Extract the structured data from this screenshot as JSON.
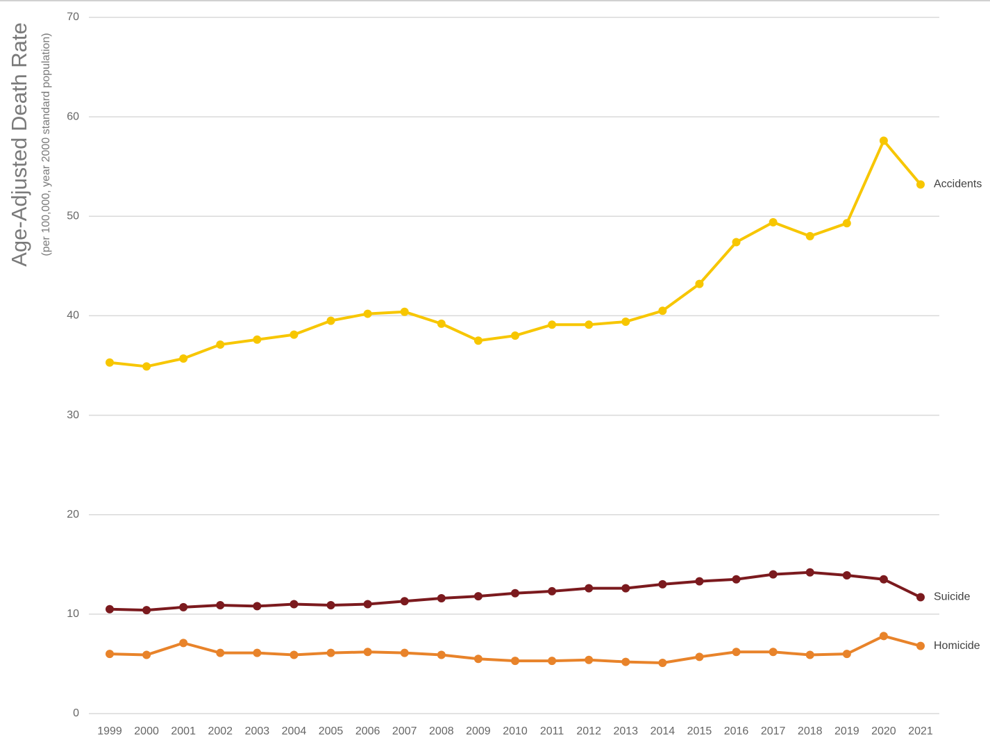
{
  "chart_data": {
    "type": "line",
    "ylabel": "Age-Adjusted Death Rate",
    "ylabel_sub": "(per 100,000, year 2000 standard population)",
    "categories": [
      "1999",
      "2000",
      "2001",
      "2002",
      "2003",
      "2004",
      "2005",
      "2006",
      "2007",
      "2008",
      "2009",
      "2010",
      "2011",
      "2012",
      "2013",
      "2014",
      "2015",
      "2016",
      "2017",
      "2018",
      "2019",
      "2020",
      "2021"
    ],
    "series": [
      {
        "name": "Accidents",
        "color": "#f7c600",
        "values": [
          35.3,
          34.9,
          35.7,
          37.1,
          37.6,
          38.1,
          39.5,
          40.2,
          40.4,
          39.2,
          37.5,
          38.0,
          39.1,
          39.1,
          39.4,
          40.5,
          43.2,
          47.4,
          49.4,
          48.0,
          49.3,
          57.6,
          53.2
        ]
      },
      {
        "name": "Suicide",
        "color": "#7b1a1e",
        "values": [
          10.5,
          10.4,
          10.7,
          10.9,
          10.8,
          11.0,
          10.9,
          11.0,
          11.3,
          11.6,
          11.8,
          12.1,
          12.3,
          12.6,
          12.6,
          13.0,
          13.3,
          13.5,
          14.0,
          14.2,
          13.9,
          13.5,
          11.7
        ]
      },
      {
        "name": "Homicide",
        "color": "#e8832a",
        "values": [
          6.0,
          5.9,
          7.1,
          6.1,
          6.1,
          5.9,
          6.1,
          6.2,
          6.1,
          5.9,
          5.5,
          5.3,
          5.3,
          5.4,
          5.2,
          5.1,
          5.7,
          6.2,
          6.2,
          5.9,
          6.0,
          7.8,
          6.8
        ]
      }
    ],
    "ylim": [
      0,
      70
    ],
    "yticks": [
      0,
      10,
      20,
      30,
      40,
      50,
      60,
      70
    ],
    "grid": true
  }
}
